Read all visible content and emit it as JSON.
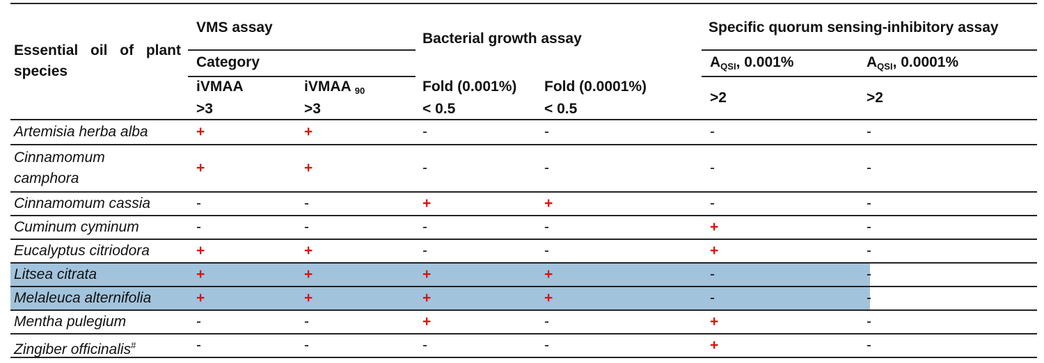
{
  "table": {
    "header": {
      "row_label": "Essential oil of plant species",
      "groups": [
        "VMS assay",
        "Bacterial growth assay",
        "Specific quorum sensing-inhibitory assay"
      ],
      "category": "Category",
      "qsi_concentrations": [
        {
          "base": "A",
          "sub": "QSI",
          "rest": ", 0.001%"
        },
        {
          "base": "A",
          "sub": "QSI",
          "rest": ", 0.0001%"
        }
      ],
      "columns": [
        {
          "name": "iVMAA",
          "threshold": ">3"
        },
        {
          "name": "iVMAA",
          "sub": "90",
          "threshold": ">3"
        },
        {
          "name": "Fold (0.001%)",
          "threshold": "< 0.5"
        },
        {
          "name": "Fold (0.0001%)",
          "threshold": "< 0.5"
        },
        {
          "threshold": ">2"
        },
        {
          "threshold": ">2"
        }
      ]
    },
    "rows": [
      {
        "species": "Artemisia herba alba",
        "cells": [
          "+",
          "+",
          "-",
          "-",
          "-",
          "-"
        ]
      },
      {
        "species": "Cinnamomum camphora",
        "cells": [
          "+",
          "+",
          "-",
          "-",
          "-",
          "-"
        ]
      },
      {
        "species": "Cinnamomum cassia",
        "cells": [
          "-",
          "-",
          "+",
          "+",
          "-",
          "-"
        ]
      },
      {
        "species": "Cuminum cyminum",
        "cells": [
          "-",
          "-",
          "-",
          "-",
          "+",
          "-"
        ]
      },
      {
        "species": "Eucalyptus citriodora",
        "cells": [
          "+",
          "+",
          "-",
          "-",
          "+",
          "-"
        ]
      },
      {
        "species": "Litsea citrata",
        "cells": [
          "+",
          "+",
          "+",
          "+",
          "-",
          "-"
        ],
        "highlight": "#a2c3dc"
      },
      {
        "species": "Melaleuca alternifolia",
        "cells": [
          "+",
          "+",
          "+",
          "+",
          "-",
          "-"
        ],
        "highlight": "#a2c3dc"
      },
      {
        "species": "Mentha pulegium",
        "cells": [
          "-",
          "-",
          "+",
          "-",
          "+",
          "-"
        ]
      },
      {
        "species": "Zingiber officinalis",
        "marker": "#",
        "cells": [
          "-",
          "-",
          "-",
          "-",
          "+",
          "-"
        ]
      }
    ]
  }
}
